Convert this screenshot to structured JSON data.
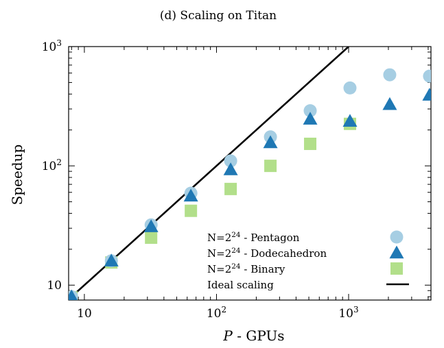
{
  "chart_data": {
    "type": "scatter",
    "title": "(d) Scaling on Titan",
    "xlabel": {
      "italic": "P",
      "rest": " - GPUs"
    },
    "ylabel": "Speedup",
    "x_scale": "log",
    "y_scale": "log",
    "xlim": [
      7.6,
      4200
    ],
    "ylim": [
      7.5,
      1000
    ],
    "x_ticks": [
      {
        "value": 10,
        "label_base": "10",
        "label_exp": ""
      },
      {
        "value": 100,
        "label_base": "10",
        "label_exp": "2"
      },
      {
        "value": 1000,
        "label_base": "10",
        "label_exp": "3"
      }
    ],
    "y_ticks": [
      {
        "value": 10,
        "label_base": "10",
        "label_exp": ""
      },
      {
        "value": 100,
        "label_base": "10",
        "label_exp": "2"
      },
      {
        "value": 1000,
        "label_base": "10",
        "label_exp": "3"
      }
    ],
    "legend_position": "lower-right",
    "series": [
      {
        "name_prefix": "N=2",
        "name_exp": "24",
        "name_suffix": " - Pentagon",
        "marker": "circle",
        "color": "#a6cee3",
        "points": [
          {
            "x": 8,
            "y": 8
          },
          {
            "x": 16,
            "y": 16
          },
          {
            "x": 32,
            "y": 32
          },
          {
            "x": 64,
            "y": 59
          },
          {
            "x": 128,
            "y": 110
          },
          {
            "x": 256,
            "y": 175
          },
          {
            "x": 512,
            "y": 290
          },
          {
            "x": 1024,
            "y": 450
          },
          {
            "x": 2048,
            "y": 580
          },
          {
            "x": 4096,
            "y": 565
          }
        ]
      },
      {
        "name_prefix": "N=2",
        "name_exp": "24",
        "name_suffix": " - Dodecahedron",
        "marker": "triangle",
        "color": "#1f78b4",
        "points": [
          {
            "x": 8,
            "y": 8
          },
          {
            "x": 16,
            "y": 16
          },
          {
            "x": 32,
            "y": 31
          },
          {
            "x": 64,
            "y": 56
          },
          {
            "x": 128,
            "y": 93
          },
          {
            "x": 256,
            "y": 157
          },
          {
            "x": 512,
            "y": 247
          },
          {
            "x": 1024,
            "y": 237
          },
          {
            "x": 2048,
            "y": 328
          },
          {
            "x": 4096,
            "y": 393
          }
        ]
      },
      {
        "name_prefix": "N=2",
        "name_exp": "24",
        "name_suffix": " - Binary",
        "marker": "square",
        "color": "#b2df8a",
        "points": [
          {
            "x": 8,
            "y": 7.9
          },
          {
            "x": 16,
            "y": 15.5
          },
          {
            "x": 32,
            "y": 25
          },
          {
            "x": 64,
            "y": 42
          },
          {
            "x": 128,
            "y": 64
          },
          {
            "x": 256,
            "y": 100
          },
          {
            "x": 512,
            "y": 153
          },
          {
            "x": 1024,
            "y": 225
          }
        ]
      }
    ],
    "ideal": {
      "name": "Ideal scaling",
      "color": "#000000",
      "x": [
        8,
        1000
      ],
      "y": [
        8,
        1000
      ]
    }
  }
}
